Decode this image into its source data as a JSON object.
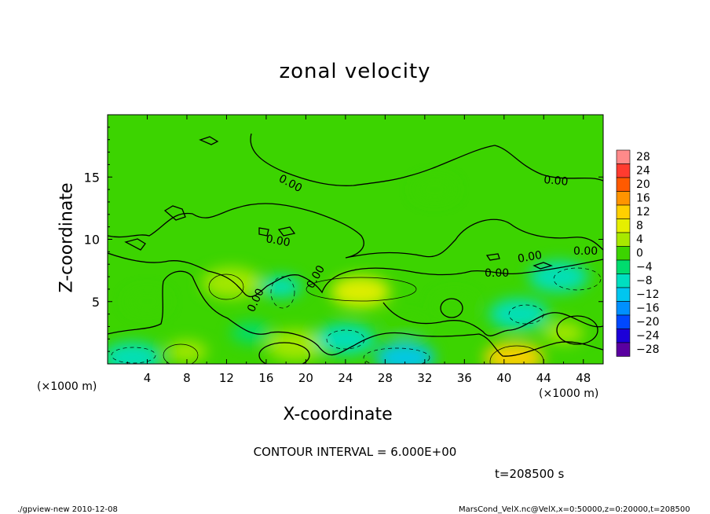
{
  "chart_data": {
    "type": "heatmap",
    "title": "zonal velocity",
    "xlabel": "X-coordinate",
    "ylabel": "Z-coordinate",
    "x_unit": "(×1000 m)",
    "y_unit": "(×1000 m)",
    "xlim": [
      0,
      50
    ],
    "ylim": [
      0,
      20
    ],
    "x_ticks": [
      4,
      8,
      12,
      16,
      20,
      24,
      28,
      32,
      36,
      40,
      44,
      48
    ],
    "y_ticks": [
      5,
      10,
      15
    ],
    "contour_interval": "CONTOUR INTERVAL = 6.000E+00",
    "contour_labels": [
      "0.00",
      "0.00",
      "0.00",
      "0.00",
      "0.00",
      "0.00",
      "0.00",
      "0.00"
    ],
    "colorbar": {
      "levels": [
        28,
        24,
        20,
        16,
        12,
        8,
        4,
        0,
        -4,
        -8,
        -12,
        -16,
        -20,
        -24,
        -28
      ],
      "colors": [
        "#ff8a8a",
        "#ff3b2f",
        "#ff5a00",
        "#ff9400",
        "#ffd000",
        "#e6ef00",
        "#a8e800",
        "#3cd400",
        "#00dc6e",
        "#00dfc0",
        "#00c6ef",
        "#0090ff",
        "#0048ff",
        "#1c00d8",
        "#5a00a0"
      ]
    },
    "regions": [
      {
        "x": 25.5,
        "z": 5.8,
        "value": 8
      },
      {
        "x": 41,
        "z": 0.5,
        "value": 12
      },
      {
        "x": 12.5,
        "z": 6.5,
        "value": 6
      },
      {
        "x": 19,
        "z": 1.5,
        "value": 6
      },
      {
        "x": 8,
        "z": 1.0,
        "value": 5
      },
      {
        "x": 46,
        "z": 2.5,
        "value": 5
      },
      {
        "x": 35,
        "z": 4.8,
        "value": 3
      },
      {
        "x": 45.5,
        "z": 7.0,
        "value": -8
      },
      {
        "x": 2.5,
        "z": 0.5,
        "value": -8
      },
      {
        "x": 30,
        "z": 0.5,
        "value": -9
      },
      {
        "x": 24,
        "z": 2.0,
        "value": -7
      },
      {
        "x": 41.5,
        "z": 4.0,
        "value": -6
      },
      {
        "x": 17.5,
        "z": 6.2,
        "value": -5
      },
      {
        "x": 14.5,
        "z": 2.5,
        "value": -4
      },
      {
        "x": 4,
        "z": 5,
        "value": 2
      },
      {
        "x": 30,
        "z": 3,
        "value": 2
      },
      {
        "x": 33,
        "z": 14,
        "value": 0
      }
    ]
  },
  "time_label": "t=208500 s",
  "footer_left": "./gpview-new  2010-12-08",
  "footer_right": "MarsCond_VelX.nc@VelX,x=0:50000,z=0:20000,t=208500"
}
